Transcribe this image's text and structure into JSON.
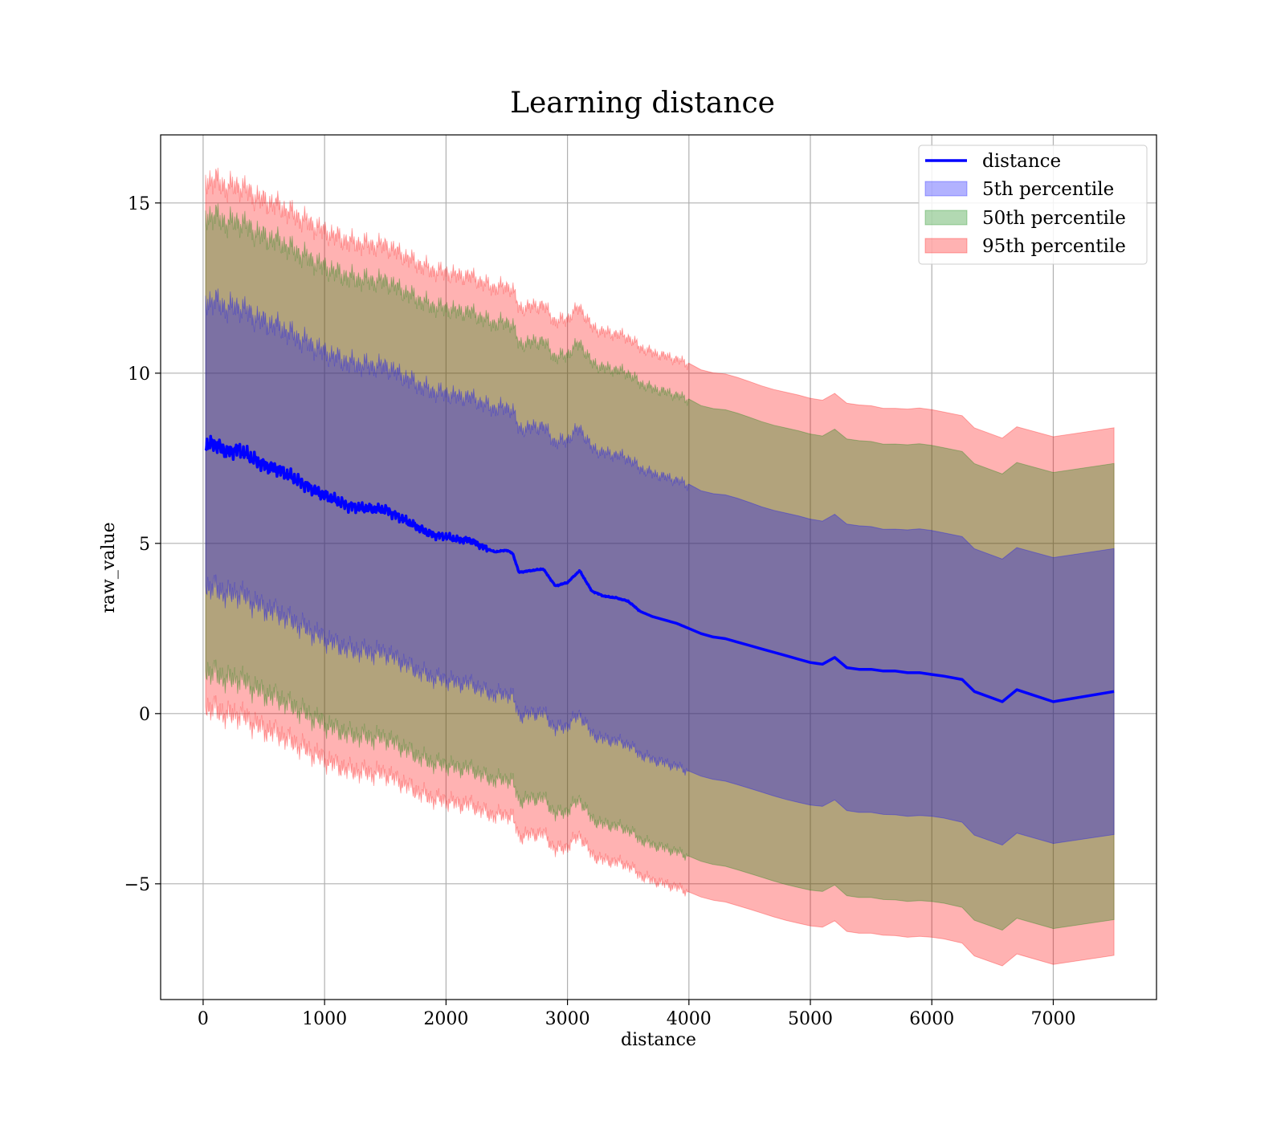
{
  "chart_data": {
    "type": "area",
    "title": "Learning distance",
    "xlabel": "distance",
    "ylabel": "raw_value",
    "xlim": [
      -350,
      7850
    ],
    "ylim": [
      -8.4,
      17.0
    ],
    "grid": true,
    "legend_position": "top-right",
    "x_ticks": [
      0,
      1000,
      2000,
      3000,
      4000,
      5000,
      6000,
      7000
    ],
    "x_tick_labels": [
      "0",
      "1000",
      "2000",
      "3000",
      "4000",
      "5000",
      "6000",
      "7000"
    ],
    "y_ticks": [
      -5,
      0,
      5,
      10,
      15
    ],
    "y_tick_labels": [
      "−5",
      "0",
      "5",
      "10",
      "15"
    ],
    "legend": [
      "distance",
      "5th percentile",
      "50th percentile",
      "95th percentile"
    ],
    "colors": {
      "line": "#0000ff",
      "band_5th": "#0000ff",
      "band_50th": "#008000",
      "band_95th": "#ff0000",
      "grid": "#b0b0b0"
    },
    "x": [
      20,
      100,
      200,
      300,
      400,
      500,
      600,
      700,
      800,
      900,
      1000,
      1100,
      1200,
      1300,
      1400,
      1500,
      1600,
      1700,
      1800,
      1900,
      2000,
      2100,
      2200,
      2300,
      2400,
      2500,
      2550,
      2600,
      2700,
      2800,
      2900,
      3000,
      3100,
      3200,
      3300,
      3400,
      3500,
      3600,
      3700,
      3800,
      3900,
      4000,
      4100,
      4200,
      4300,
      4400,
      4500,
      4600,
      4700,
      4800,
      4900,
      5000,
      5100,
      5200,
      5300,
      5400,
      5500,
      5600,
      5700,
      5800,
      5900,
      6000,
      6100,
      6250,
      6350,
      6580,
      6700,
      7000,
      7500
    ],
    "series": [
      {
        "name": "distance",
        "values": [
          7.9,
          7.9,
          7.7,
          7.75,
          7.5,
          7.3,
          7.2,
          7.0,
          6.8,
          6.6,
          6.4,
          6.25,
          6.1,
          6.05,
          6.0,
          6.0,
          5.8,
          5.6,
          5.4,
          5.25,
          5.2,
          5.1,
          5.1,
          4.9,
          4.75,
          4.8,
          4.7,
          4.15,
          4.2,
          4.25,
          3.75,
          3.85,
          4.2,
          3.6,
          3.45,
          3.4,
          3.3,
          3.0,
          2.85,
          2.75,
          2.65,
          2.5,
          2.35,
          2.25,
          2.2,
          2.1,
          2.0,
          1.9,
          1.8,
          1.7,
          1.6,
          1.5,
          1.45,
          1.65,
          1.35,
          1.3,
          1.3,
          1.25,
          1.25,
          1.2,
          1.2,
          1.15,
          1.1,
          1.0,
          0.65,
          0.35,
          0.7,
          0.35,
          0.65
        ]
      }
    ],
    "bands": [
      {
        "name": "5th percentile",
        "half_width": 4.2
      },
      {
        "name": "50th percentile",
        "half_width": 6.7
      },
      {
        "name": "95th percentile",
        "half_width": 7.75
      }
    ]
  }
}
